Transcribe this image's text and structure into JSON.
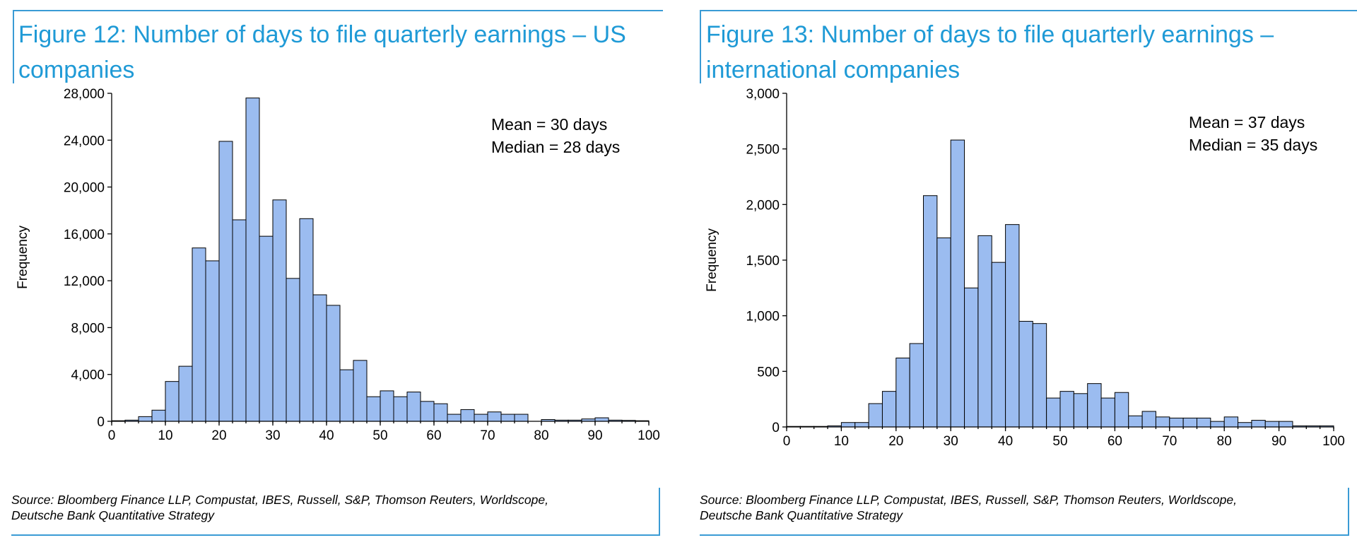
{
  "chart_data": [
    {
      "type": "bar",
      "title": "Figure 12: Number of days to file quarterly earnings – US companies",
      "xlabel": "",
      "ylabel": "Frequency",
      "xlim": [
        0,
        100
      ],
      "ylim": [
        0,
        28000
      ],
      "x_ticks": [
        "0",
        "10",
        "20",
        "30",
        "40",
        "50",
        "60",
        "70",
        "80",
        "90",
        "100"
      ],
      "y_ticks": [
        "0",
        "4,000",
        "8,000",
        "12,000",
        "16,000",
        "20,000",
        "24,000",
        "28,000"
      ],
      "bin_width": 2.5,
      "bins_start": [
        0,
        2.5,
        5,
        7.5,
        10,
        12.5,
        15,
        17.5,
        20,
        22.5,
        25,
        27.5,
        30,
        32.5,
        35,
        37.5,
        40,
        42.5,
        45,
        47.5,
        50,
        52.5,
        55,
        57.5,
        60,
        62.5,
        65,
        67.5,
        70,
        72.5,
        75,
        77.5,
        80,
        82.5,
        85,
        87.5,
        90,
        92.5,
        95,
        97.5
      ],
      "values": [
        50,
        100,
        400,
        950,
        3400,
        4700,
        14800,
        13700,
        23900,
        17200,
        27600,
        15800,
        18900,
        12200,
        17300,
        10800,
        9900,
        4400,
        5200,
        2100,
        2600,
        2100,
        2500,
        1700,
        1500,
        600,
        1000,
        600,
        800,
        600,
        600,
        0,
        150,
        100,
        100,
        200,
        300,
        100,
        80,
        50
      ],
      "annotations": [
        "Mean = 30 days",
        "Median = 28 days"
      ],
      "grid": false,
      "source": [
        "Source: Bloomberg Finance LLP, Compustat, IBES, Russell, S&P, Thomson Reuters, Worldscope,",
        "Deutsche Bank Quantitative Strategy"
      ]
    },
    {
      "type": "bar",
      "title": "Figure 13: Number of days to file quarterly earnings – international companies",
      "xlabel": "",
      "ylabel": "Frequency",
      "xlim": [
        0,
        100
      ],
      "ylim": [
        0,
        3000
      ],
      "x_ticks": [
        "0",
        "10",
        "20",
        "30",
        "40",
        "50",
        "60",
        "70",
        "80",
        "90",
        "100"
      ],
      "y_ticks": [
        "0",
        "500",
        "1,000",
        "1,500",
        "2,000",
        "2,500",
        "3,000"
      ],
      "bin_width": 2.5,
      "bins_start": [
        0,
        2.5,
        5,
        7.5,
        10,
        12.5,
        15,
        17.5,
        20,
        22.5,
        25,
        27.5,
        30,
        32.5,
        35,
        37.5,
        40,
        42.5,
        45,
        47.5,
        50,
        52.5,
        55,
        57.5,
        60,
        62.5,
        65,
        67.5,
        70,
        72.5,
        75,
        77.5,
        80,
        82.5,
        85,
        87.5,
        90,
        92.5,
        95,
        97.5
      ],
      "values": [
        5,
        5,
        5,
        10,
        40,
        40,
        210,
        320,
        620,
        750,
        2080,
        1700,
        2580,
        1250,
        1720,
        1480,
        1820,
        950,
        930,
        260,
        320,
        300,
        390,
        260,
        310,
        100,
        140,
        90,
        80,
        80,
        80,
        50,
        90,
        40,
        60,
        50,
        50,
        10,
        10,
        10
      ],
      "annotations": [
        "Mean = 37 days",
        "Median = 35 days"
      ],
      "grid": false,
      "source": [
        "Source: Bloomberg Finance LLP, Compustat, IBES, Russell, S&P, Thomson Reuters, Worldscope,",
        "Deutsche Bank Quantitative Strategy"
      ]
    }
  ],
  "colors": {
    "accent": "#1f9ad6",
    "bar_fill": "#9bbcf0",
    "bar_stroke": "#000000"
  }
}
